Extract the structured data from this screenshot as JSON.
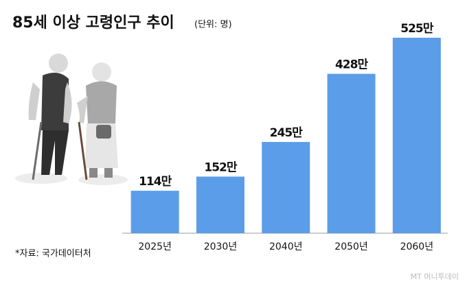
{
  "chart_data": {
    "type": "bar",
    "title": "85세 이상 고령인구 추이",
    "subtitle": "(단위: 명)",
    "categories": [
      "2025년",
      "2030년",
      "2040년",
      "2050년",
      "2060년"
    ],
    "values": [
      114,
      152,
      245,
      428,
      525
    ],
    "value_labels": [
      "114만",
      "152만",
      "245만",
      "428만",
      "525만"
    ],
    "color": "#5b9de8",
    "source": "*자료: 국가데이터처",
    "watermark": "MT 머니투데이"
  }
}
